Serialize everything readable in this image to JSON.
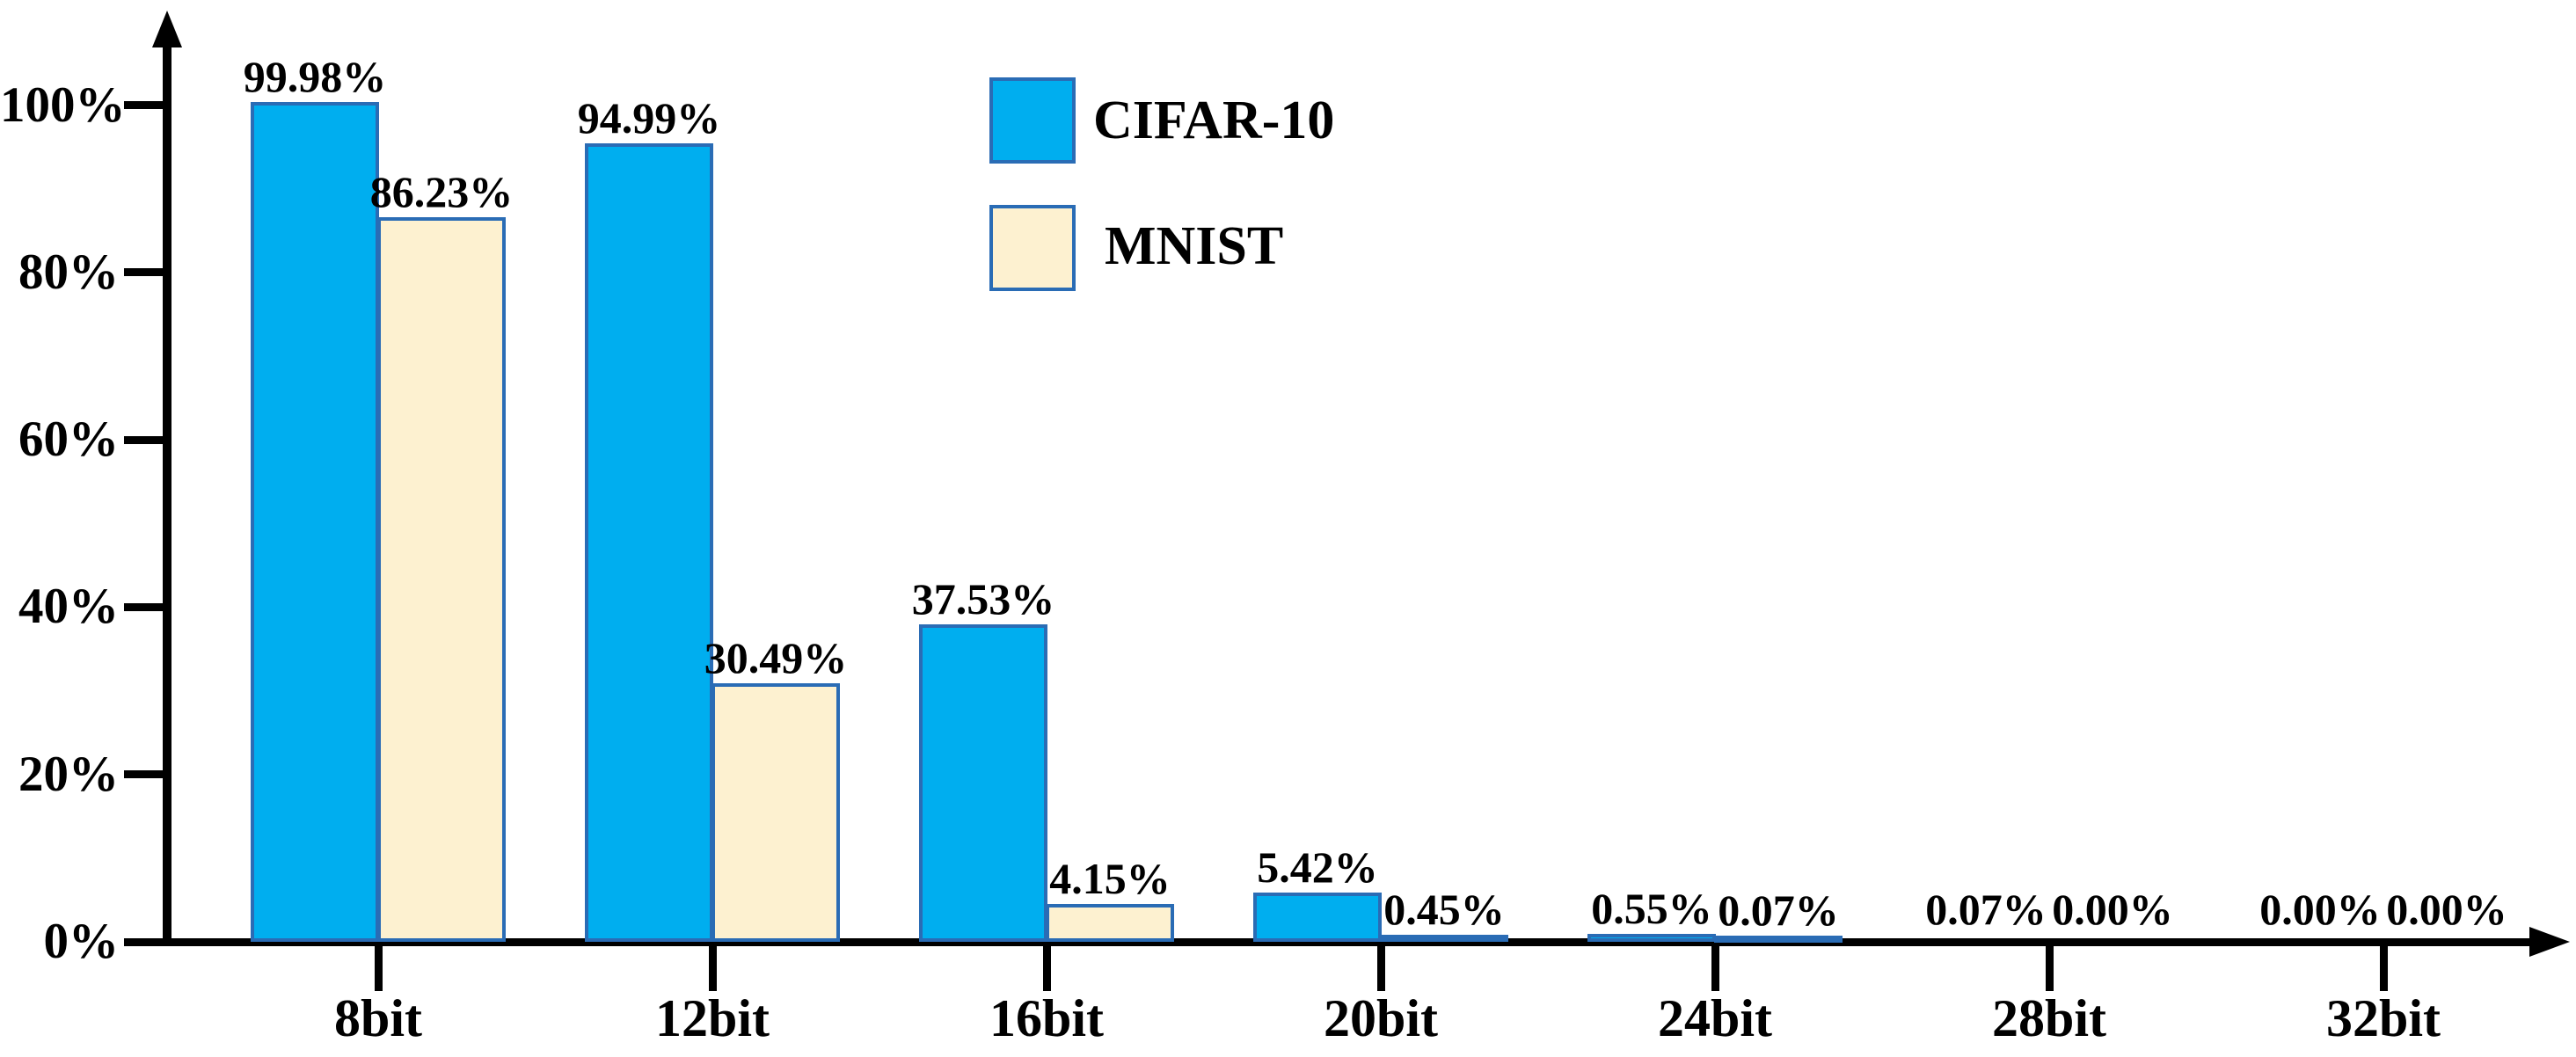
{
  "chart_data": {
    "type": "bar",
    "title": "",
    "xlabel": "",
    "ylabel": "",
    "grid": false,
    "categories": [
      "8bit",
      "12bit",
      "16bit",
      "20bit",
      "24bit",
      "28bit",
      "32bit"
    ],
    "series": [
      {
        "name": "CIFAR-10",
        "color": "#00aeef",
        "values": [
          99.98,
          94.99,
          37.53,
          5.42,
          0.55,
          0.07,
          0.0
        ],
        "value_labels": [
          "99.98%",
          "94.99%",
          "37.53%",
          "5.42%",
          "0.55%",
          "0.07%",
          "0.00%"
        ],
        "bar_drawn": [
          true,
          true,
          true,
          true,
          true,
          false,
          false
        ]
      },
      {
        "name": "MNIST",
        "color": "#fdf1d0",
        "values": [
          86.23,
          30.49,
          4.15,
          0.45,
          0.07,
          0.0,
          0.0
        ],
        "value_labels": [
          "86.23%",
          "30.49%",
          "4.15%",
          "0.45%",
          "0.07%",
          "0.00%",
          "0.00%"
        ],
        "bar_drawn": [
          true,
          true,
          true,
          true,
          true,
          false,
          false
        ]
      }
    ],
    "y_axis": {
      "tick_labels": [
        "0%",
        "20%",
        "40%",
        "60%",
        "80%",
        "100%"
      ],
      "tick_values": [
        0,
        20,
        40,
        60,
        80,
        100
      ],
      "min": 0,
      "max": 100
    },
    "legend": {
      "position": "upper-center-left",
      "entries": [
        "CIFAR-10",
        "MNIST"
      ]
    },
    "colors": {
      "bar_border": "#2a6cb5",
      "axis": "#000000",
      "text": "#000000",
      "background": "#ffffff"
    }
  }
}
